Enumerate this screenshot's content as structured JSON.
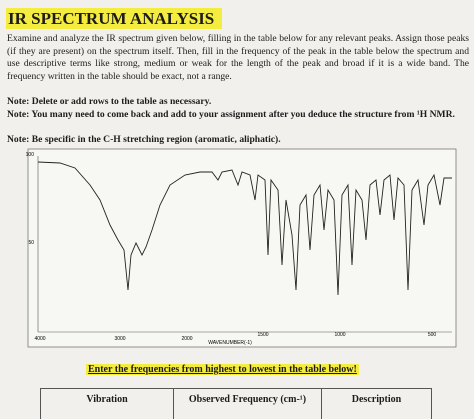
{
  "title": "IR SPECTRUM ANALYSIS",
  "instructions": "Examine and analyze the IR spectrum given below, filling in the table below for any relevant peaks. Assign those peaks (if they are present) on the spectrum itself. Then, fill in the frequency of the peak in the table below the spectrum and use descriptive terms like strong, medium or weak for the length of the peak and broad if it is a wide band. The frequency written in the table should be exact, not a range.",
  "notes": [
    "Note: Delete or add rows to the table as necessary.",
    "Note: You many need to come back and add to your assignment after you deduce the structure from ¹H NMR.",
    "Note: Be specific in the C-H stretching region (aromatic, aliphatic)."
  ],
  "spectrum": {
    "y_labels": [
      "100",
      "50"
    ],
    "x_labels": [
      "4000",
      "3000",
      "2000",
      "1500",
      "1000",
      "500"
    ],
    "x_axis_label": "WAVENUMBER(-1)"
  },
  "table_instruction": "Enter the frequencies from highest to lowest in the table below!",
  "table": {
    "headers": [
      "Vibration",
      "Observed Frequency (cm-¹)",
      "Description"
    ]
  }
}
